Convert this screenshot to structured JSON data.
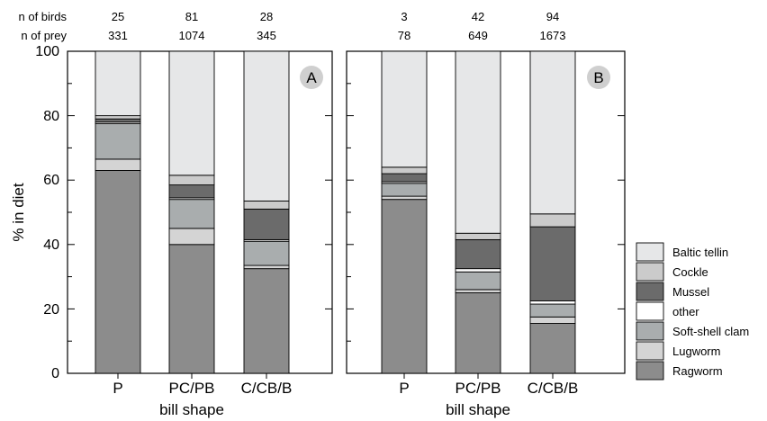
{
  "header_labels": {
    "birds": "n of birds",
    "prey": "n of prey"
  },
  "ylabel": "% in diet",
  "xlabel": "bill shape",
  "yticks": [
    "0",
    "20",
    "40",
    "60",
    "80",
    "100"
  ],
  "legend": [
    "Baltic tellin",
    "Cockle",
    "Mussel",
    "other",
    "Soft-shell clam",
    "Lugworm",
    "Ragworm"
  ],
  "colors": {
    "Ragworm": "#8c8c8c",
    "Lugworm": "#d4d4d4",
    "Soft-shell clam": "#a9adae",
    "other": "#ffffff",
    "Mussel": "#6b6b6b",
    "Cockle": "#cbcbcb",
    "Baltic tellin": "#e6e7e8"
  },
  "chart_data": [
    {
      "type": "bar",
      "stacked": true,
      "panel": "A",
      "categories": [
        "P",
        "PC/PB",
        "C/CB/B"
      ],
      "n_birds": [
        "25",
        "81",
        "28"
      ],
      "n_prey": [
        "331",
        "1074",
        "345"
      ],
      "ylim": [
        0,
        100
      ],
      "xlabel": "bill shape",
      "ylabel": "% in diet",
      "series": [
        {
          "name": "Ragworm",
          "values": [
            63,
            40,
            32.5
          ]
        },
        {
          "name": "Lugworm",
          "values": [
            3.5,
            5,
            1
          ]
        },
        {
          "name": "Soft-shell clam",
          "values": [
            11,
            9,
            7.5
          ]
        },
        {
          "name": "other",
          "values": [
            0.5,
            0.5,
            0.5
          ]
        },
        {
          "name": "Mussel",
          "values": [
            1,
            4,
            9.5
          ]
        },
        {
          "name": "Cockle",
          "values": [
            1,
            3,
            2.5
          ]
        },
        {
          "name": "Baltic tellin",
          "values": [
            20,
            38.5,
            46.5
          ]
        }
      ]
    },
    {
      "type": "bar",
      "stacked": true,
      "panel": "B",
      "categories": [
        "P",
        "PC/PB",
        "C/CB/B"
      ],
      "n_birds": [
        "3",
        "42",
        "94"
      ],
      "n_prey": [
        "78",
        "649",
        "1673"
      ],
      "ylim": [
        0,
        100
      ],
      "xlabel": "bill shape",
      "ylabel": "% in diet",
      "series": [
        {
          "name": "Ragworm",
          "values": [
            54,
            25,
            15.5
          ]
        },
        {
          "name": "Lugworm",
          "values": [
            1,
            1,
            2
          ]
        },
        {
          "name": "Soft-shell clam",
          "values": [
            4,
            5.5,
            4
          ]
        },
        {
          "name": "other",
          "values": [
            0.5,
            1,
            1
          ]
        },
        {
          "name": "Mussel",
          "values": [
            2.5,
            9,
            23
          ]
        },
        {
          "name": "Cockle",
          "values": [
            2,
            2,
            4
          ]
        },
        {
          "name": "Baltic tellin",
          "values": [
            36,
            56.5,
            50.5
          ]
        }
      ]
    }
  ]
}
